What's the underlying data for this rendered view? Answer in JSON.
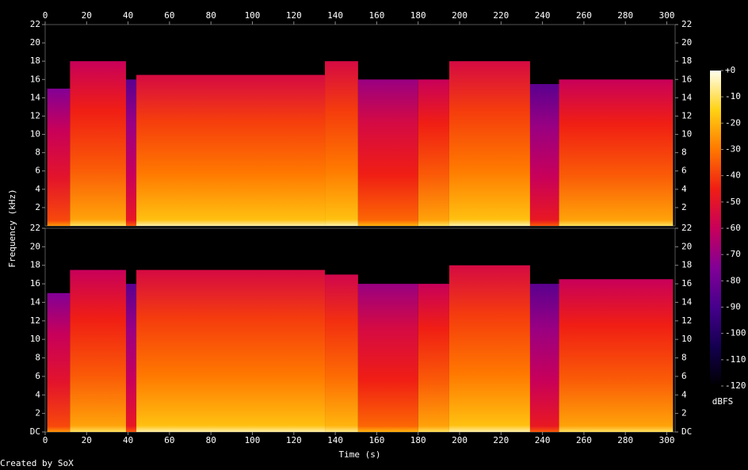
{
  "chart_data": {
    "type": "spectrogram",
    "x_label": "Time (s)",
    "y_label": "Frequency (kHz)",
    "footer": "Created by SoX",
    "colorbar_label": "dBFS",
    "xlim": [
      0,
      304
    ],
    "xticks": [
      0,
      20,
      40,
      60,
      80,
      100,
      120,
      140,
      160,
      180,
      200,
      220,
      240,
      260,
      280,
      300
    ],
    "clim": [
      -120,
      0
    ],
    "cticks": [
      {
        "value": 0,
        "label": "+0"
      },
      -10,
      -20,
      -30,
      -40,
      -50,
      -60,
      -70,
      -80,
      -90,
      -100,
      -110,
      -120
    ],
    "channels": [
      {
        "ylim": [
          0,
          22
        ],
        "yticks": [
          2,
          4,
          6,
          8,
          10,
          12,
          14,
          16,
          18,
          20,
          22
        ],
        "x": [
          0,
          1,
          12,
          39,
          44,
          135,
          151,
          180,
          195,
          234,
          248,
          303
        ],
        "values": [
          0,
          15,
          18,
          16,
          16.5,
          18,
          16,
          16,
          18,
          15.5,
          16,
          0
        ],
        "levels": [
          -120,
          -60,
          -45,
          -70,
          -40,
          -40,
          -55,
          -45,
          -40,
          -70,
          -45,
          -120
        ]
      },
      {
        "ylim": [
          0,
          22
        ],
        "yticks": [
          {
            "value": 0,
            "label": "DC"
          },
          2,
          4,
          6,
          8,
          10,
          12,
          14,
          16,
          18,
          20,
          22
        ],
        "x": [
          0,
          1,
          12,
          39,
          44,
          135,
          151,
          180,
          195,
          234,
          248,
          303
        ],
        "values": [
          0,
          15,
          17.5,
          16,
          17.5,
          17,
          16,
          16,
          18,
          16,
          16.5,
          0
        ],
        "levels": [
          -120,
          -60,
          -45,
          -70,
          -40,
          -42,
          -55,
          -45,
          -40,
          -70,
          -45,
          -120
        ]
      }
    ]
  }
}
